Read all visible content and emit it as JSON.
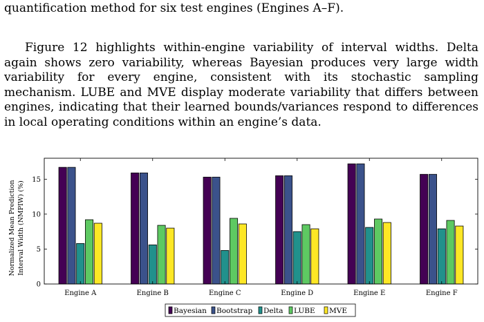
{
  "text": {
    "p1": "quantification method for six test engines (Engines A–F).",
    "p2": "Figure 12 highlights within-engine variability of interval widths. Delta again shows zero variability, whereas Bayesian produces very large width variability for every engine, consistent with its stochastic sampling mechanism. LUBE and MVE display moderate variability that differs between engines, indicating that their learned bounds/variances respond to differences in local operating conditions within an engine’s data."
  },
  "chart_data": {
    "type": "bar",
    "categories": [
      "Engine A",
      "Engine B",
      "Engine C",
      "Engine D",
      "Engine E",
      "Engine F"
    ],
    "series": [
      {
        "name": "Bayesian",
        "color": "#440154",
        "values": [
          16.7,
          15.9,
          15.3,
          15.5,
          17.2,
          15.7
        ]
      },
      {
        "name": "Bootstrap",
        "color": "#3b528b",
        "values": [
          16.7,
          15.9,
          15.3,
          15.5,
          17.2,
          15.7
        ]
      },
      {
        "name": "Delta",
        "color": "#21918c",
        "values": [
          5.8,
          5.6,
          4.8,
          7.5,
          8.1,
          7.9
        ]
      },
      {
        "name": "LUBE",
        "color": "#5ec962",
        "values": [
          9.2,
          8.4,
          9.4,
          8.5,
          9.3,
          9.1
        ]
      },
      {
        "name": "MVE",
        "color": "#fde725",
        "values": [
          8.7,
          8.0,
          8.6,
          7.9,
          8.8,
          8.3
        ]
      }
    ],
    "ylabel_line1": "Normalized Mean Prediction",
    "ylabel_line2": "Interval Width (NMPIW) (%)",
    "ylim": [
      0,
      18
    ],
    "yticks": [
      0,
      5,
      10,
      15
    ],
    "ytick_labels": [
      "0",
      "5",
      "10",
      "15"
    ],
    "grid": false,
    "legend_position": "bottom-center"
  }
}
